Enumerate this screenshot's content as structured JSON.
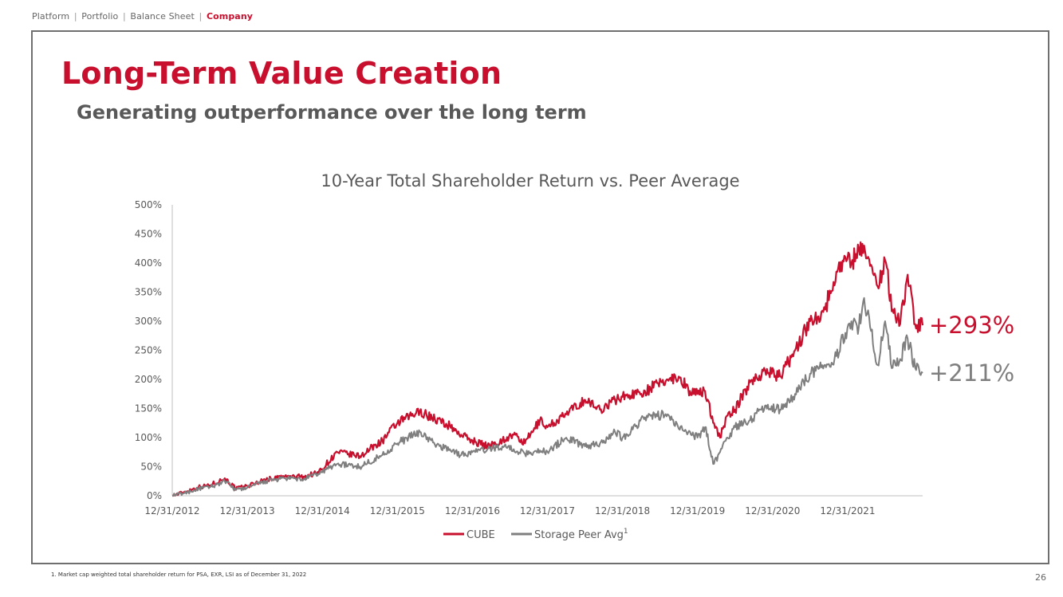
{
  "breadcrumb": {
    "items": [
      "Platform",
      "Portfolio",
      "Balance Sheet"
    ],
    "active": "Company",
    "separator": "|"
  },
  "title": "Long-Term Value Creation",
  "subtitle": "Generating outperformance over the long term",
  "footnote": "1.    Market cap weighted total shareholder return for PSA, EXR, LSI as of December 31, 2022",
  "page_number": "26",
  "colors": {
    "accent": "#c8102e",
    "peer": "#7f7f7f",
    "text": "#595959"
  },
  "chart_data": {
    "type": "line",
    "title": "10-Year Total Shareholder Return vs. Peer Average",
    "xlabel": "",
    "ylabel": "",
    "ylim": [
      0,
      500
    ],
    "yticks": [
      "0%",
      "50%",
      "100%",
      "150%",
      "200%",
      "250%",
      "300%",
      "350%",
      "400%",
      "450%",
      "500%"
    ],
    "xlim": [
      2013.0,
      2023.0
    ],
    "xticks": [
      "12/31/2012",
      "12/31/2013",
      "12/31/2014",
      "12/31/2015",
      "12/31/2016",
      "12/31/2017",
      "12/31/2018",
      "12/31/2019",
      "12/31/2020",
      "12/31/2021"
    ],
    "legend_position": "bottom-center",
    "series": [
      {
        "name": "CUBE",
        "legend_label": "CUBE",
        "color": "#c8102e",
        "end_label": "+293%",
        "x": [
          2013.0,
          2013.2,
          2013.35,
          2013.5,
          2013.7,
          2013.85,
          2014.0,
          2014.25,
          2014.5,
          2014.75,
          2014.95,
          2015.2,
          2015.5,
          2015.8,
          2016.0,
          2016.3,
          2016.5,
          2016.7,
          2016.85,
          2017.0,
          2017.2,
          2017.4,
          2017.55,
          2017.7,
          2017.9,
          2018.0,
          2018.25,
          2018.5,
          2018.7,
          2018.9,
          2019.0,
          2019.3,
          2019.6,
          2019.75,
          2019.9,
          2020.0,
          2020.1,
          2020.22,
          2020.3,
          2020.4,
          2020.5,
          2020.7,
          2020.9,
          2021.1,
          2021.3,
          2021.5,
          2021.7,
          2021.85,
          2021.97,
          2022.05,
          2022.15,
          2022.22,
          2022.3,
          2022.4,
          2022.5,
          2022.6,
          2022.7,
          2022.8,
          2022.9,
          2023.0
        ],
        "values": [
          0,
          8,
          15,
          18,
          30,
          12,
          17,
          28,
          33,
          33,
          40,
          75,
          68,
          95,
          125,
          145,
          132,
          120,
          105,
          95,
          85,
          95,
          105,
          90,
          130,
          118,
          140,
          165,
          148,
          165,
          170,
          180,
          200,
          205,
          180,
          175,
          180,
          125,
          100,
          138,
          148,
          195,
          215,
          205,
          250,
          300,
          320,
          385,
          410,
          400,
          425,
          430,
          395,
          360,
          405,
          320,
          295,
          380,
          295,
          293
        ]
      },
      {
        "name": "Storage Peer Avg",
        "legend_label": "Storage Peer Avg",
        "legend_superscript": "1",
        "color": "#7f7f7f",
        "end_label": "+211%",
        "x": [
          2013.0,
          2013.2,
          2013.35,
          2013.5,
          2013.7,
          2013.85,
          2014.0,
          2014.25,
          2014.5,
          2014.75,
          2014.95,
          2015.2,
          2015.5,
          2015.8,
          2016.0,
          2016.3,
          2016.5,
          2016.7,
          2016.85,
          2017.0,
          2017.2,
          2017.4,
          2017.55,
          2017.7,
          2017.9,
          2018.0,
          2018.25,
          2018.5,
          2018.7,
          2018.9,
          2019.0,
          2019.3,
          2019.6,
          2019.75,
          2019.9,
          2020.0,
          2020.1,
          2020.22,
          2020.3,
          2020.4,
          2020.5,
          2020.7,
          2020.9,
          2021.1,
          2021.3,
          2021.5,
          2021.7,
          2021.85,
          2021.97,
          2022.05,
          2022.15,
          2022.22,
          2022.3,
          2022.4,
          2022.5,
          2022.6,
          2022.7,
          2022.8,
          2022.9,
          2023.0
        ],
        "values": [
          0,
          6,
          12,
          15,
          25,
          10,
          14,
          25,
          30,
          28,
          38,
          55,
          50,
          70,
          90,
          110,
          88,
          80,
          70,
          75,
          80,
          85,
          80,
          72,
          78,
          76,
          100,
          85,
          90,
          110,
          100,
          135,
          140,
          115,
          110,
          100,
          118,
          55,
          75,
          100,
          118,
          130,
          155,
          148,
          175,
          210,
          225,
          240,
          280,
          300,
          290,
          340,
          290,
          225,
          300,
          220,
          235,
          270,
          220,
          211
        ]
      }
    ]
  }
}
